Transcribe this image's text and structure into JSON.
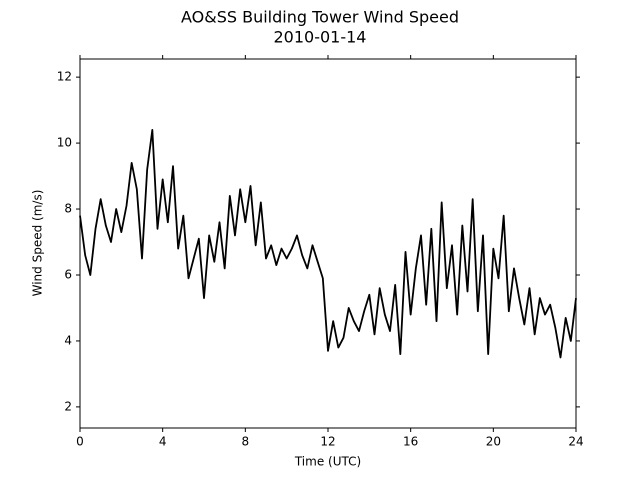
{
  "chart_data": {
    "type": "line",
    "title": "AO&SS Building Tower Wind Speed",
    "subtitle": "2010-01-14",
    "x_label": "Time (UTC)",
    "y_label": "Wind Speed (m/s)",
    "xlim": [
      0,
      24
    ],
    "xticks": [
      0,
      4,
      8,
      12,
      16,
      20,
      24
    ],
    "ylim": [
      1.36,
      12.55
    ],
    "yticks": [
      2,
      4,
      6,
      8,
      10,
      12
    ],
    "grid": false,
    "x": [
      0,
      0.25,
      0.5,
      0.75,
      1,
      1.25,
      1.5,
      1.75,
      2,
      2.25,
      2.5,
      2.75,
      3,
      3.25,
      3.5,
      3.75,
      4,
      4.25,
      4.5,
      4.75,
      5,
      5.25,
      5.5,
      5.75,
      6,
      6.25,
      6.5,
      6.75,
      7,
      7.25,
      7.5,
      7.75,
      8,
      8.25,
      8.5,
      8.75,
      9,
      9.25,
      9.5,
      9.75,
      10,
      10.25,
      10.5,
      10.75,
      11,
      11.25,
      11.5,
      11.75,
      12,
      12.25,
      12.5,
      12.75,
      13,
      13.25,
      13.5,
      13.75,
      14,
      14.25,
      14.5,
      14.75,
      15,
      15.25,
      15.5,
      15.75,
      16,
      16.25,
      16.5,
      16.75,
      17,
      17.25,
      17.5,
      17.75,
      18,
      18.25,
      18.5,
      18.75,
      19,
      19.25,
      19.5,
      19.75,
      20,
      20.25,
      20.5,
      20.75,
      21,
      21.25,
      21.5,
      21.75,
      22,
      22.25,
      22.5,
      22.75,
      23,
      23.25,
      23.5,
      23.75,
      24
    ],
    "series": [
      {
        "color": "#000000",
        "values": [
          7.8,
          6.6,
          6.0,
          7.4,
          8.3,
          7.5,
          7.0,
          8.0,
          7.3,
          8.1,
          9.4,
          8.6,
          6.5,
          9.2,
          10.4,
          7.4,
          8.9,
          7.6,
          9.3,
          6.8,
          7.8,
          5.9,
          6.5,
          7.1,
          5.3,
          7.2,
          6.4,
          7.6,
          6.2,
          8.4,
          7.2,
          8.6,
          7.6,
          8.7,
          6.9,
          8.2,
          6.5,
          6.9,
          6.3,
          6.8,
          6.5,
          6.8,
          7.2,
          6.6,
          6.2,
          6.9,
          6.4,
          5.9,
          3.7,
          4.6,
          3.8,
          4.1,
          5.0,
          4.6,
          4.3,
          4.9,
          5.4,
          4.2,
          5.6,
          4.8,
          4.3,
          5.7,
          3.6,
          6.7,
          4.8,
          6.2,
          7.2,
          5.1,
          7.4,
          4.6,
          8.2,
          5.6,
          6.9,
          4.8,
          7.5,
          5.5,
          8.3,
          4.9,
          7.2,
          3.6,
          6.8,
          5.9,
          7.8,
          4.9,
          6.2,
          5.3,
          4.5,
          5.6,
          4.2,
          5.3,
          4.8,
          5.1,
          4.4,
          3.5,
          4.7,
          4.0,
          5.3
        ]
      }
    ]
  }
}
